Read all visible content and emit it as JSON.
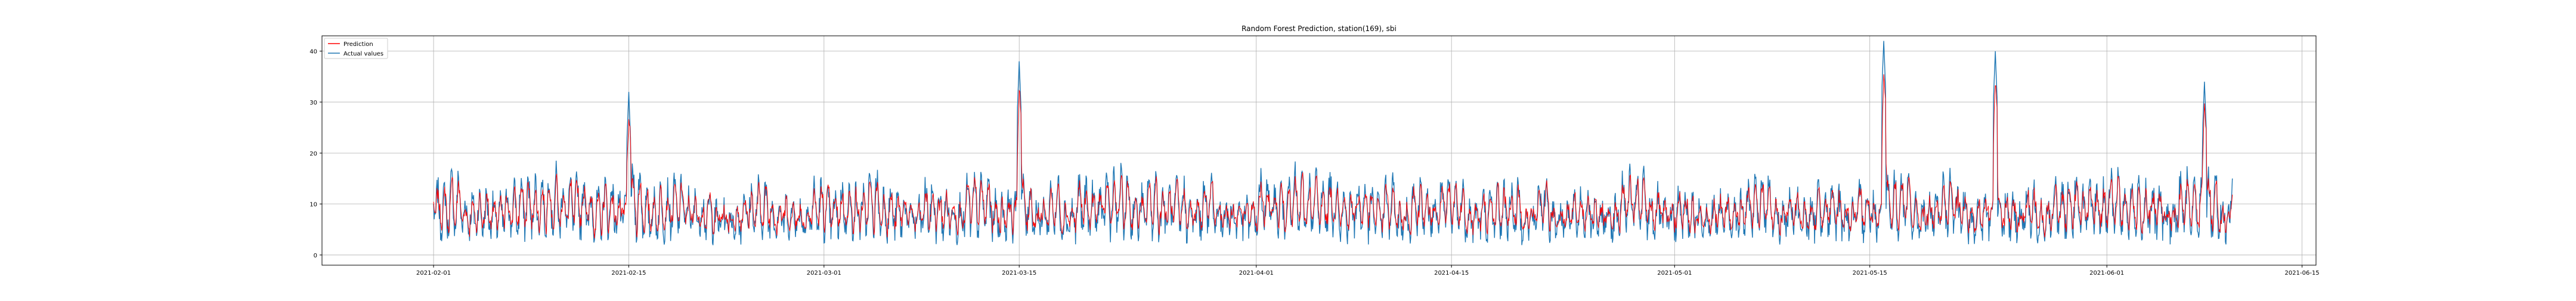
{
  "chart_data": {
    "type": "line",
    "title": "Random Forest Prediction, station(169), sbi",
    "xlabel": "",
    "ylabel": "",
    "x_start": "2021-02-01",
    "x_end": "2021-06-10",
    "xlim": [
      "2021-01-24",
      "2021-06-16"
    ],
    "ylim": [
      -2,
      43
    ],
    "x_ticks": [
      "2021-02-01",
      "2021-02-15",
      "2021-03-01",
      "2021-03-15",
      "2021-04-01",
      "2021-04-15",
      "2021-05-01",
      "2021-05-15",
      "2021-06-01",
      "2021-06-15"
    ],
    "y_ticks": [
      "0",
      "10",
      "20",
      "30",
      "40"
    ],
    "grid": true,
    "legend_position": "top-left",
    "series": [
      {
        "name": "Prediction",
        "color": "#ff0000"
      },
      {
        "name": "Actual values",
        "color": "#1f77b4"
      }
    ],
    "peaks": [
      {
        "date": "2021-02-01",
        "value": 10
      },
      {
        "date": "2021-02-15",
        "value": 32
      },
      {
        "date": "2021-03-15",
        "value": 38
      },
      {
        "date": "2021-05-16",
        "value": 42
      },
      {
        "date": "2021-05-24",
        "value": 40
      },
      {
        "date": "2021-06-08",
        "value": 34
      },
      {
        "date": "2021-06-10",
        "value": 15
      }
    ],
    "typical_range": [
      0,
      30
    ]
  }
}
